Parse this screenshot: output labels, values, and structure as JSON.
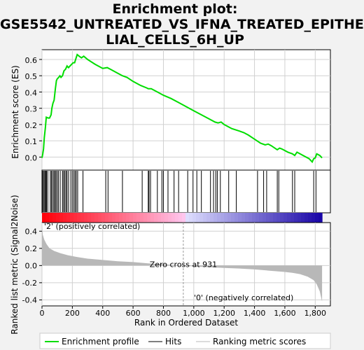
{
  "title_lines": [
    "Enrichment plot:",
    "GSE5542_UNTREATED_VS_IFNA_TREATED_EPITHE",
    "LIAL_CELLS_6H_UP"
  ],
  "colors": {
    "es_line": "#00dd00",
    "hits": "#000000",
    "ranking_fill": "#b8b8b8",
    "pos_label": "#cc0000",
    "neg_label": "#0000cc"
  },
  "chart_data": {
    "type": "line",
    "x_label": "Rank in Ordered Dataset",
    "x_range": [
      0,
      1900
    ],
    "x_ticks": [
      0,
      200,
      400,
      600,
      800,
      1000,
      1200,
      1400,
      1600,
      1800
    ],
    "x_tick_labels": [
      "0",
      "200",
      "400",
      "600",
      "800",
      "1,000",
      "1,200",
      "1,400",
      "1,600",
      "1,800"
    ],
    "es_panel": {
      "y_label": "Enrichment score (ES)",
      "y_range": [
        -0.08,
        0.66
      ],
      "y_ticks": [
        0.0,
        0.1,
        0.2,
        0.3,
        0.4,
        0.5,
        0.6
      ],
      "y_tick_labels": [
        "0.0",
        "0.1",
        "0.2",
        "0.3",
        "0.4",
        "0.5",
        "0.6"
      ],
      "es_curve": [
        [
          0,
          -0.005
        ],
        [
          5,
          0.02
        ],
        [
          10,
          0.05
        ],
        [
          15,
          0.12
        ],
        [
          22,
          0.18
        ],
        [
          28,
          0.245
        ],
        [
          40,
          0.24
        ],
        [
          50,
          0.24
        ],
        [
          60,
          0.26
        ],
        [
          65,
          0.3
        ],
        [
          72,
          0.33
        ],
        [
          80,
          0.35
        ],
        [
          88,
          0.42
        ],
        [
          95,
          0.47
        ],
        [
          100,
          0.48
        ],
        [
          110,
          0.49
        ],
        [
          118,
          0.5
        ],
        [
          125,
          0.49
        ],
        [
          135,
          0.5
        ],
        [
          145,
          0.53
        ],
        [
          155,
          0.54
        ],
        [
          165,
          0.56
        ],
        [
          175,
          0.55
        ],
        [
          185,
          0.56
        ],
        [
          195,
          0.57
        ],
        [
          205,
          0.58
        ],
        [
          215,
          0.58
        ],
        [
          225,
          0.61
        ],
        [
          232,
          0.63
        ],
        [
          245,
          0.62
        ],
        [
          260,
          0.61
        ],
        [
          275,
          0.62
        ],
        [
          300,
          0.6
        ],
        [
          350,
          0.57
        ],
        [
          400,
          0.545
        ],
        [
          430,
          0.55
        ],
        [
          450,
          0.54
        ],
        [
          500,
          0.515
        ],
        [
          530,
          0.5
        ],
        [
          560,
          0.49
        ],
        [
          600,
          0.465
        ],
        [
          650,
          0.44
        ],
        [
          690,
          0.425
        ],
        [
          700,
          0.42
        ],
        [
          720,
          0.42
        ],
        [
          760,
          0.4
        ],
        [
          800,
          0.38
        ],
        [
          850,
          0.36
        ],
        [
          900,
          0.335
        ],
        [
          950,
          0.31
        ],
        [
          1000,
          0.285
        ],
        [
          1050,
          0.26
        ],
        [
          1100,
          0.235
        ],
        [
          1140,
          0.215
        ],
        [
          1160,
          0.21
        ],
        [
          1180,
          0.215
        ],
        [
          1200,
          0.2
        ],
        [
          1250,
          0.175
        ],
        [
          1300,
          0.16
        ],
        [
          1330,
          0.15
        ],
        [
          1360,
          0.135
        ],
        [
          1400,
          0.11
        ],
        [
          1440,
          0.085
        ],
        [
          1470,
          0.075
        ],
        [
          1490,
          0.08
        ],
        [
          1510,
          0.07
        ],
        [
          1550,
          0.045
        ],
        [
          1565,
          0.055
        ],
        [
          1580,
          0.05
        ],
        [
          1620,
          0.03
        ],
        [
          1650,
          0.02
        ],
        [
          1665,
          0.01
        ],
        [
          1680,
          0.03
        ],
        [
          1720,
          0.01
        ],
        [
          1760,
          -0.01
        ],
        [
          1780,
          -0.03
        ],
        [
          1790,
          -0.01
        ],
        [
          1800,
          -0.005
        ],
        [
          1810,
          0.02
        ],
        [
          1830,
          0.01
        ],
        [
          1845,
          -0.005
        ]
      ]
    },
    "hits": [
      2,
      8,
      14,
      20,
      26,
      30,
      38,
      55,
      62,
      70,
      78,
      85,
      92,
      100,
      108,
      120,
      135,
      142,
      150,
      158,
      165,
      175,
      190,
      200,
      210,
      218,
      226,
      235,
      270,
      420,
      435,
      530,
      660,
      700,
      705,
      715,
      760,
      790,
      800,
      830,
      870,
      900,
      960,
      995,
      1020,
      1050,
      1110,
      1130,
      1145,
      1155,
      1175,
      1230,
      1280,
      1420,
      1460,
      1480,
      1550,
      1560,
      1650,
      1665,
      1790,
      1805
    ],
    "rank_panel": {
      "y_label": "Ranked list metric (Signal2Noise)",
      "y_range": [
        -0.47,
        0.5
      ],
      "y_ticks": [
        -0.4,
        -0.2,
        0.0,
        0.2,
        0.4
      ],
      "y_tick_labels": [
        "-0.4",
        "-0.2",
        "0.0",
        "0.2",
        "0.4"
      ],
      "metric_curve": [
        [
          0,
          0.46
        ],
        [
          5,
          0.36
        ],
        [
          15,
          0.3
        ],
        [
          30,
          0.25
        ],
        [
          50,
          0.2
        ],
        [
          80,
          0.17
        ],
        [
          120,
          0.145
        ],
        [
          170,
          0.12
        ],
        [
          230,
          0.1
        ],
        [
          300,
          0.08
        ],
        [
          400,
          0.065
        ],
        [
          500,
          0.05
        ],
        [
          600,
          0.04
        ],
        [
          700,
          0.025
        ],
        [
          800,
          0.015
        ],
        [
          931,
          0.0
        ],
        [
          1000,
          -0.01
        ],
        [
          1100,
          -0.02
        ],
        [
          1200,
          -0.028
        ],
        [
          1300,
          -0.035
        ],
        [
          1400,
          -0.045
        ],
        [
          1500,
          -0.06
        ],
        [
          1600,
          -0.075
        ],
        [
          1650,
          -0.085
        ],
        [
          1700,
          -0.1
        ],
        [
          1750,
          -0.13
        ],
        [
          1790,
          -0.17
        ],
        [
          1810,
          -0.22
        ],
        [
          1830,
          -0.3
        ],
        [
          1845,
          -0.42
        ]
      ],
      "zero_cross_label": "Zero cross at 931",
      "zero_cross_rank": 931,
      "pos_label": "'2' (positively correlated)",
      "neg_label": "'0' (negatively correlated)"
    },
    "legend": [
      {
        "name": "Enrichment profile",
        "style": "green-line"
      },
      {
        "name": "Hits",
        "style": "black-line"
      },
      {
        "name": "Ranking metric scores",
        "style": "gray-line"
      }
    ]
  }
}
